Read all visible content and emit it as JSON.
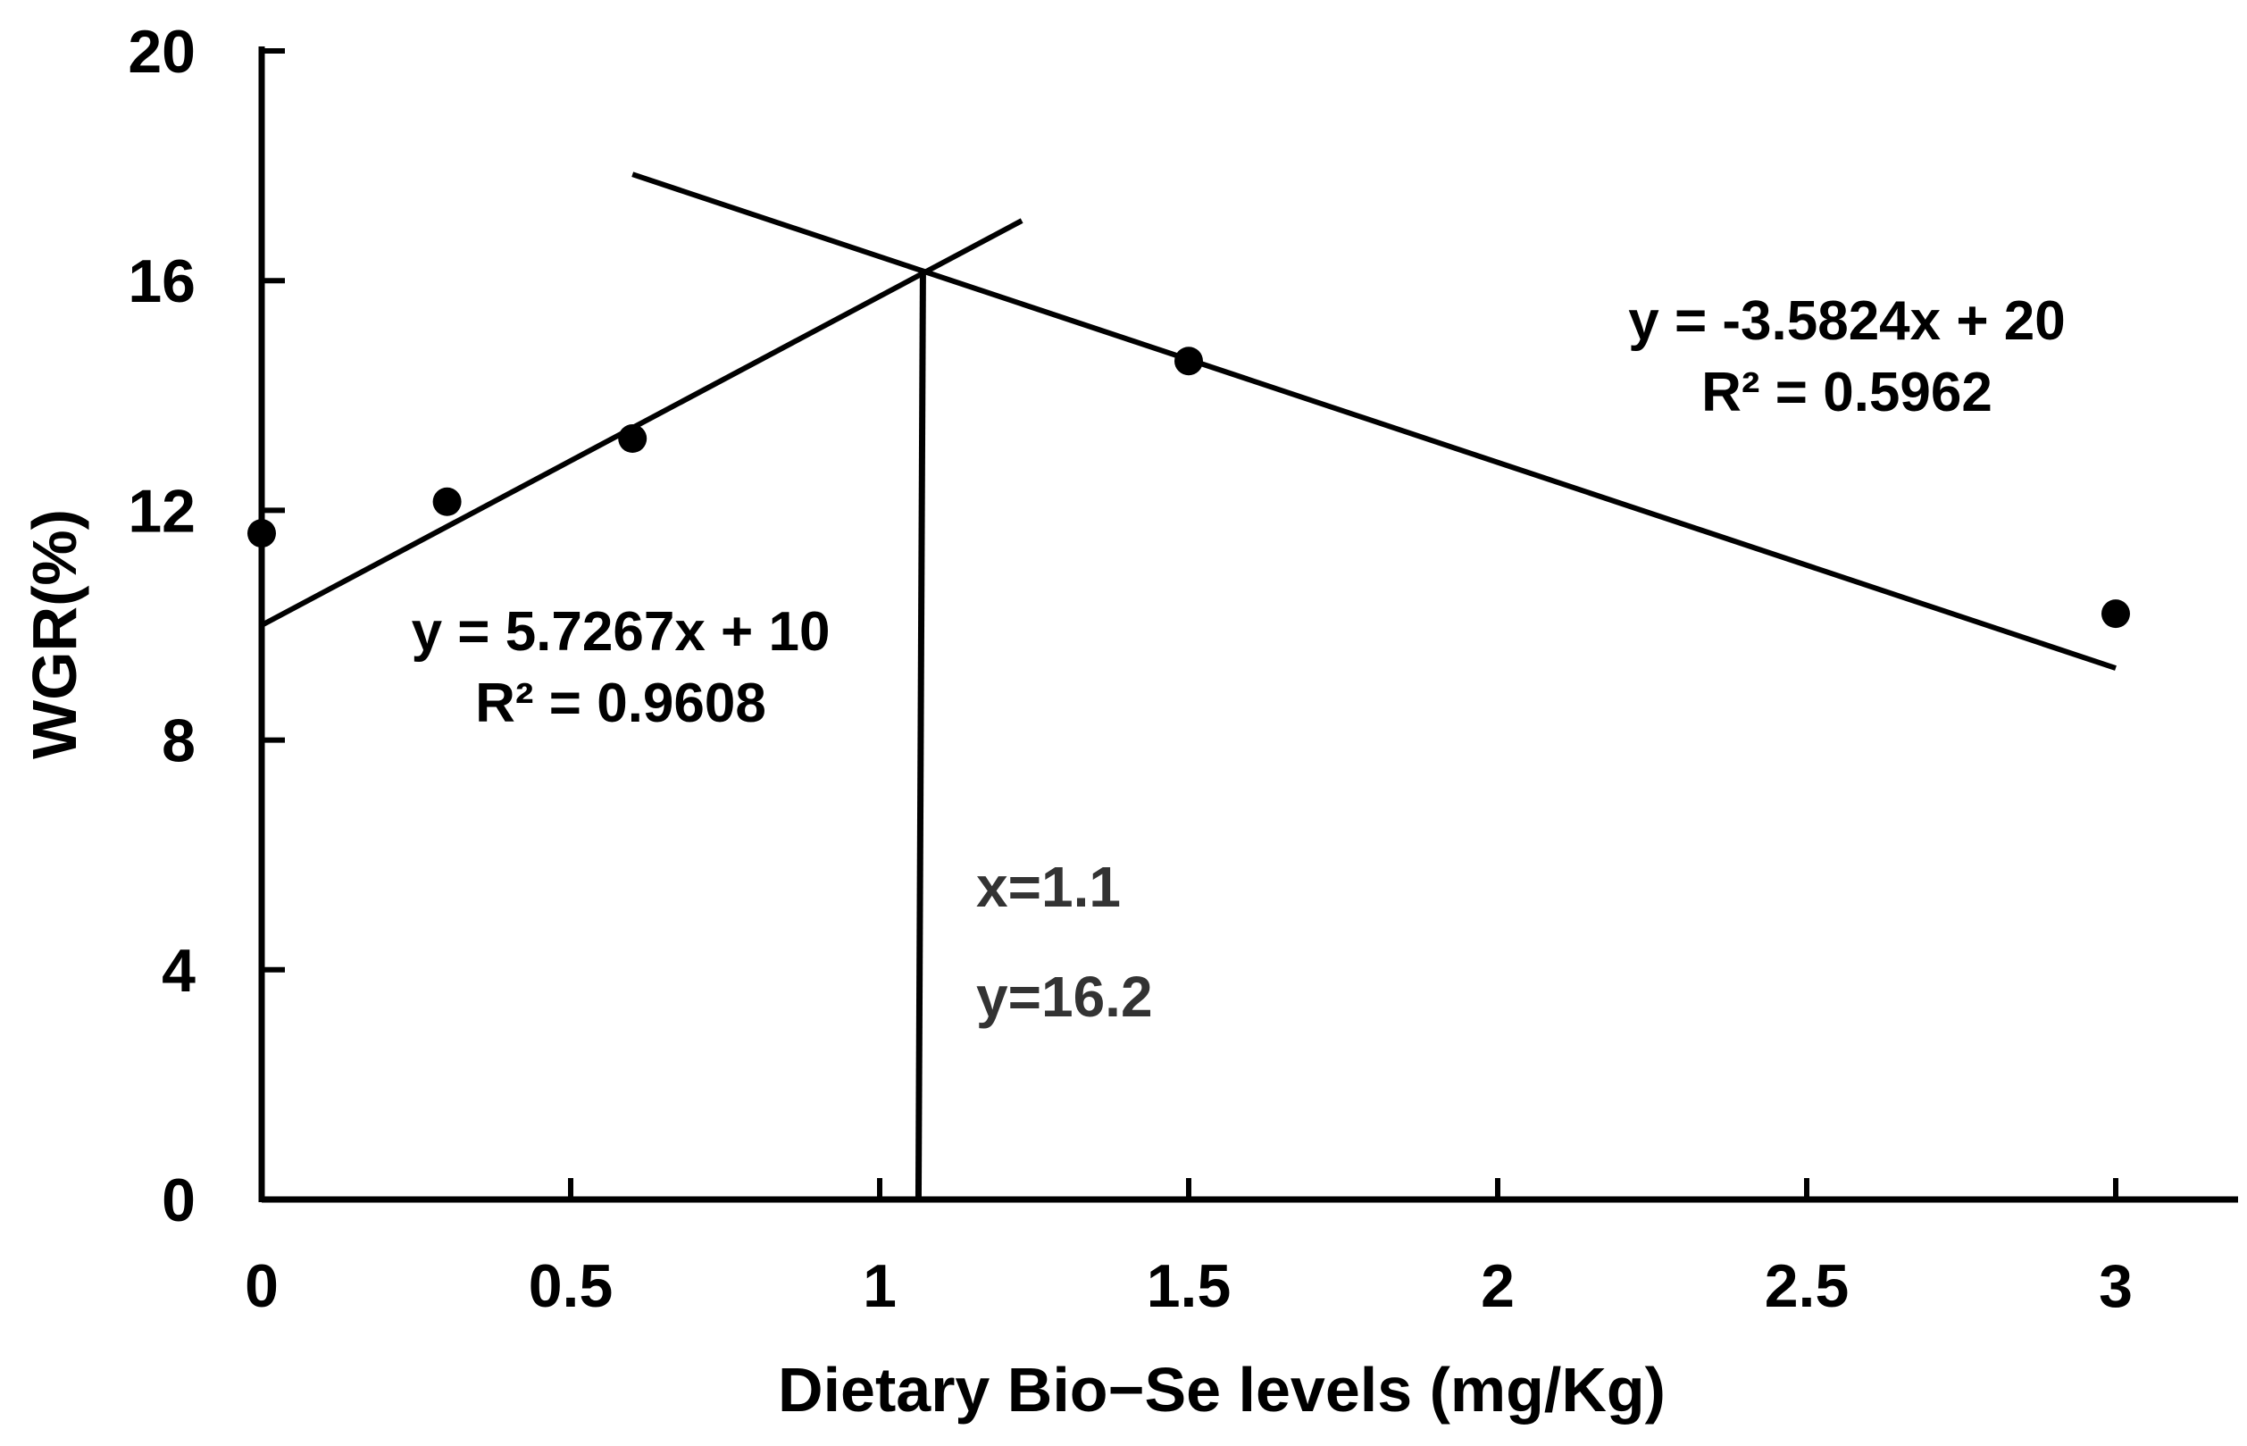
{
  "chart_data": {
    "type": "scatter",
    "title": "",
    "xlabel": "Dietary Bio−Se levels (mg/Kg)",
    "ylabel": "WGR(%)",
    "xlim": [
      0,
      3.2
    ],
    "ylim": [
      0,
      20
    ],
    "xticks": [
      0,
      0.5,
      1,
      1.5,
      2,
      2.5,
      3
    ],
    "xtick_labels": [
      "0",
      "0.5",
      "1",
      "1.5",
      "2",
      "2.5",
      "3"
    ],
    "yticks": [
      0,
      4,
      8,
      12,
      16,
      20
    ],
    "ytick_labels": [
      "0",
      "4",
      "8",
      "12",
      "16",
      "20"
    ],
    "grid": false,
    "points": [
      {
        "x": 0,
        "y": 11.6
      },
      {
        "x": 0.3,
        "y": 12.15
      },
      {
        "x": 0.6,
        "y": 13.25
      },
      {
        "x": 1.5,
        "y": 14.6
      },
      {
        "x": 3,
        "y": 10.2
      }
    ],
    "trendlines": [
      {
        "slope": 5.7267,
        "intercept": 10,
        "x_range": [
          0,
          1.23
        ],
        "equation": "y = 5.7267x + 10",
        "r2": "R² = 0.9608"
      },
      {
        "slope": -3.5824,
        "intercept": 20,
        "x_range": [
          0.6,
          3.0
        ],
        "equation": "y = -3.5824x + 20",
        "r2": "R² = 0.5962"
      }
    ],
    "intersection": {
      "x": 1.07,
      "y": 16.2
    },
    "annotations": {
      "x_text": "x=1.1",
      "y_text": "y=16.2"
    }
  }
}
